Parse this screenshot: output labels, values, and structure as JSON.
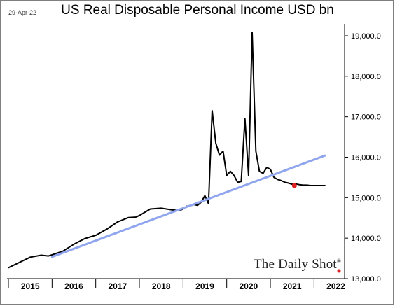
{
  "date_label": "29-Apr-22",
  "watermark": {
    "text": "The Daily Shot",
    "mark": "®"
  },
  "chart_data": {
    "type": "line",
    "title": "US Real Disposable Personal Income USD bn",
    "xlabel": "",
    "ylabel": "",
    "ylim": [
      13000,
      19500
    ],
    "yticks": [
      13000,
      14000,
      15000,
      16000,
      17000,
      18000,
      19000
    ],
    "ytick_labels": [
      "13,000.0",
      "14,000.0",
      "15,000.0",
      "16,000.0",
      "17,000.0",
      "18,000.0",
      "19,000.0"
    ],
    "y_axis_position": "right",
    "x_categories": [
      "2015",
      "2016",
      "2017",
      "2018",
      "2019",
      "2020",
      "2021",
      "2022"
    ],
    "xlim": [
      2015.0,
      2022.7
    ],
    "grid": false,
    "legend": "none",
    "series": [
      {
        "role": "income",
        "color": "#000000",
        "x": [
          2015.0,
          2015.25,
          2015.5,
          2015.75,
          2015.917,
          2016.0,
          2016.25,
          2016.5,
          2016.75,
          2017.0,
          2017.25,
          2017.5,
          2017.75,
          2017.917,
          2018.0,
          2018.25,
          2018.5,
          2018.75,
          2018.833,
          2018.917,
          2019.0,
          2019.083,
          2019.167,
          2019.25,
          2019.333,
          2019.417,
          2019.5,
          2019.583,
          2019.667,
          2019.75,
          2019.833,
          2019.917,
          2020.0,
          2020.083,
          2020.167,
          2020.25,
          2020.333,
          2020.417,
          2020.5,
          2020.583,
          2020.667,
          2020.75,
          2020.833,
          2020.917,
          2021.0,
          2021.083,
          2021.167,
          2021.25,
          2021.333,
          2021.417,
          2021.5,
          2021.583,
          2021.667,
          2021.75,
          2021.833,
          2021.917,
          2022.0,
          2022.083,
          2022.167,
          2022.25
        ],
        "y": [
          13270,
          13400,
          13530,
          13580,
          13560,
          13590,
          13680,
          13850,
          13990,
          14070,
          14220,
          14400,
          14510,
          14520,
          14560,
          14720,
          14740,
          14700,
          14690,
          14680,
          14720,
          14790,
          14800,
          14830,
          14810,
          14890,
          15050,
          14850,
          17150,
          16350,
          16050,
          16150,
          15550,
          15650,
          15550,
          15380,
          15400,
          16950,
          15550,
          19080,
          16150,
          15650,
          15600,
          15750,
          15700,
          15500,
          15450,
          15420,
          15380,
          15360,
          15330,
          15340,
          15320,
          15310,
          15310,
          15300,
          15300,
          15300,
          15300,
          15300
        ]
      },
      {
        "role": "trend",
        "color": "#8fa6ee",
        "x": [
          2016.0,
          2022.25
        ],
        "y": [
          13540,
          16040
        ]
      }
    ],
    "last_point": {
      "x": 2021.55,
      "y": 15300,
      "color": "#e02020"
    },
    "corner_marker": {
      "color": "#e02020"
    }
  }
}
